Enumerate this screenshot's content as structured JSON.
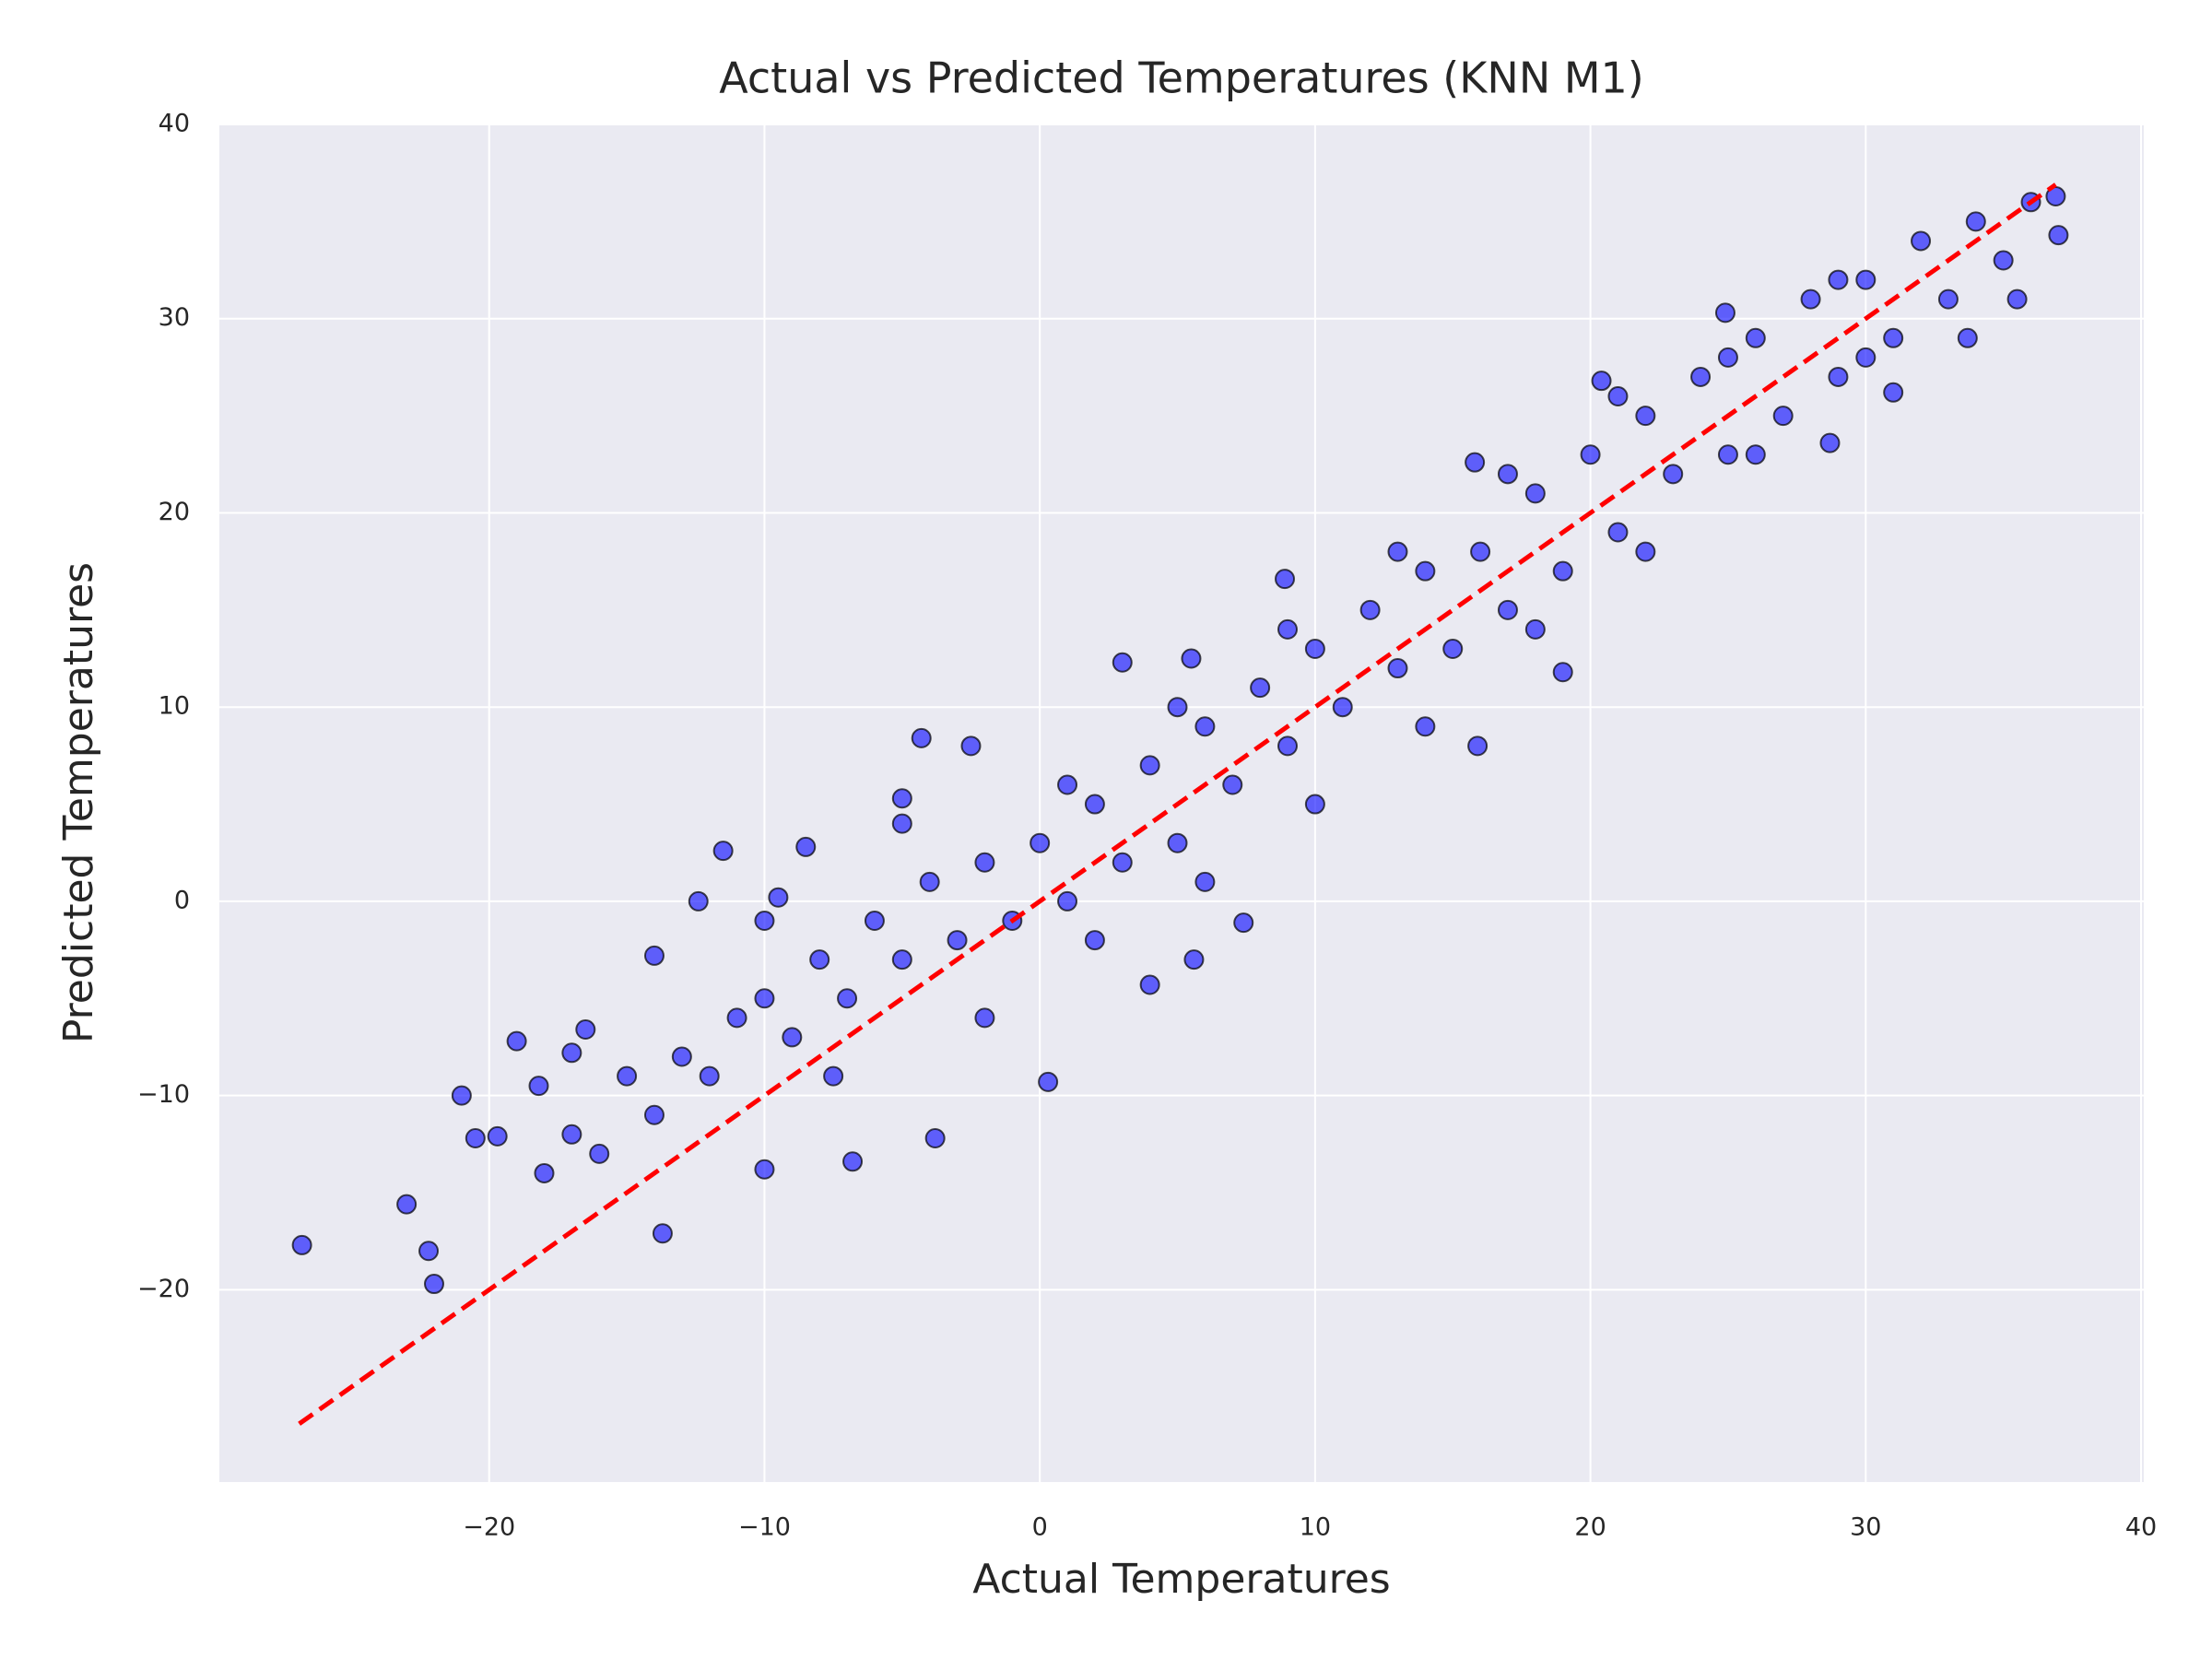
{
  "chart_data": {
    "type": "scatter",
    "title": "Actual vs Predicted Temperatures (KNN M1)",
    "x_label": "Actual Temperatures",
    "y_label": "Predicted Temperatures",
    "xlim": [
      -29.8,
      40.1
    ],
    "ylim": [
      -29.9,
      40
    ],
    "xticks": [
      {
        "value": -20,
        "label": "−20"
      },
      {
        "value": -10,
        "label": "−10"
      },
      0,
      10,
      20,
      30,
      40
    ],
    "yticks": [
      {
        "value": -20,
        "label": "−20"
      },
      {
        "value": -10,
        "label": "−10"
      },
      0,
      10,
      20,
      30,
      40
    ],
    "grid": true,
    "background": "#eaeaf2",
    "series": [
      {
        "color": "#0000ff",
        "edge_color": "#000000",
        "opacity": 0.6,
        "x": [
          -26.8,
          -23,
          -22.2,
          -22,
          -21,
          -20.5,
          -19.7,
          -19,
          -18.2,
          -17,
          -16.5,
          -14,
          -12.4,
          -11.5,
          -9.5,
          -8.5,
          -4.3,
          -2.5,
          -5,
          0.3,
          -3.8,
          -6.8,
          -10,
          -13.7,
          4,
          5.6,
          7.4,
          15.9,
          19,
          20.4,
          24.9,
          28.7,
          31,
          33.7,
          36.9,
          37,
          15.8,
          8.9,
          3,
          5.5,
          -18,
          -17,
          -16,
          -15,
          -14,
          -13,
          -12,
          -11,
          -10,
          -9,
          -8,
          -7,
          -6,
          -5,
          -4,
          -3,
          -2,
          -1,
          0,
          1,
          2,
          3,
          4,
          5,
          6,
          7,
          8,
          9,
          10,
          11,
          12,
          13,
          14,
          15,
          16,
          17,
          18,
          19,
          20,
          21,
          22,
          23,
          24,
          25,
          26,
          27,
          28,
          29,
          30,
          31,
          32,
          33,
          34,
          35,
          36,
          35.5,
          -7.5,
          -2,
          2,
          6,
          10,
          14,
          18,
          22,
          26,
          30,
          -10,
          -5,
          1,
          5,
          9,
          13,
          17,
          21,
          25,
          29
        ],
        "y": [
          -17.7,
          -15.6,
          -18,
          -19.7,
          -10,
          -12.2,
          -12.1,
          -7.2,
          -9.5,
          -7.8,
          -6.6,
          -2.8,
          0,
          2.6,
          0.2,
          2.8,
          8.4,
          8,
          5.3,
          -9.3,
          -12.2,
          -13.4,
          -13.8,
          -17.1,
          -4.3,
          -3,
          -1.1,
          8,
          11.8,
          26.8,
          30.3,
          23.6,
          26.2,
          29,
          36.3,
          34.3,
          22.6,
          16.6,
          12.3,
          12.5,
          -14,
          -12,
          -13,
          -9,
          -11,
          -8,
          -9,
          -6,
          -5,
          -7,
          -3,
          -5,
          -1,
          -3,
          1,
          -2,
          2,
          -1,
          3,
          0,
          5,
          2,
          7,
          3,
          9,
          6,
          11,
          8,
          13,
          10,
          15,
          12,
          17,
          13,
          18,
          15,
          21,
          17,
          23,
          19,
          25,
          22,
          27,
          23,
          29,
          25,
          31,
          27,
          32,
          29,
          34,
          31,
          35,
          33,
          36,
          31,
          -9,
          -6,
          -2,
          1,
          5,
          9,
          14,
          18,
          23,
          28,
          -1,
          4,
          6,
          10,
          14,
          18,
          22,
          26,
          28,
          32
        ]
      }
    ],
    "reference_line": {
      "color": "#ff0000",
      "x": [
        -26.9,
        36.9
      ],
      "y": [
        -26.9,
        36.9
      ]
    }
  }
}
